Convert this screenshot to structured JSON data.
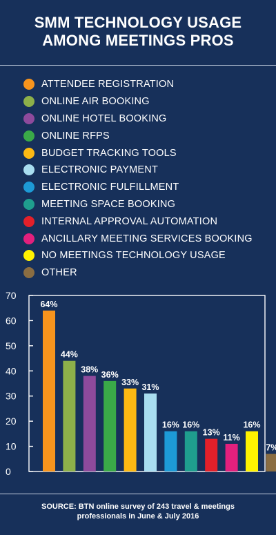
{
  "title": {
    "line1": "SMM TECHNOLOGY USAGE",
    "line2": "AMONG MEETINGS PROS"
  },
  "source": {
    "line1": "SOURCE: BTN online survey of 243 travel & meetings",
    "line2": "professionals in June & July 2016"
  },
  "chart_data": {
    "type": "bar",
    "title": "SMM TECHNOLOGY USAGE AMONG MEETINGS PROS",
    "categories": [
      "ATTENDEE REGISTRATION",
      "ONLINE AIR BOOKING",
      "ONLINE HOTEL BOOKING",
      "ONLINE RFPS",
      "BUDGET TRACKING TOOLS",
      "ELECTRONIC PAYMENT",
      "ELECTRONIC FULFILLMENT",
      "MEETING SPACE BOOKING",
      "INTERNAL APPROVAL AUTOMATION",
      "ANCILLARY MEETING SERVICES BOOKING",
      "NO MEETINGS TECHNOLOGY USAGE",
      "OTHER"
    ],
    "values": [
      64,
      44,
      38,
      36,
      33,
      31,
      16,
      16,
      13,
      11,
      16,
      7
    ],
    "value_labels": [
      "64%",
      "44%",
      "38%",
      "36%",
      "33%",
      "31%",
      "16%",
      "16%",
      "13%",
      "11%",
      "16%",
      "7%"
    ],
    "colors": [
      "#f7941d",
      "#8db04a",
      "#8e4a9c",
      "#3aaa48",
      "#fdb913",
      "#a8ddf0",
      "#1d9ad6",
      "#1f9e8e",
      "#e3202a",
      "#e3207d",
      "#fff200",
      "#8a6d42"
    ],
    "ylim": [
      0,
      70
    ],
    "yticks": [
      "0",
      "10",
      "20",
      "30",
      "40",
      "50",
      "60",
      "70"
    ],
    "xlabel": "",
    "ylabel": "",
    "grid": false,
    "legend_placement": "top"
  }
}
